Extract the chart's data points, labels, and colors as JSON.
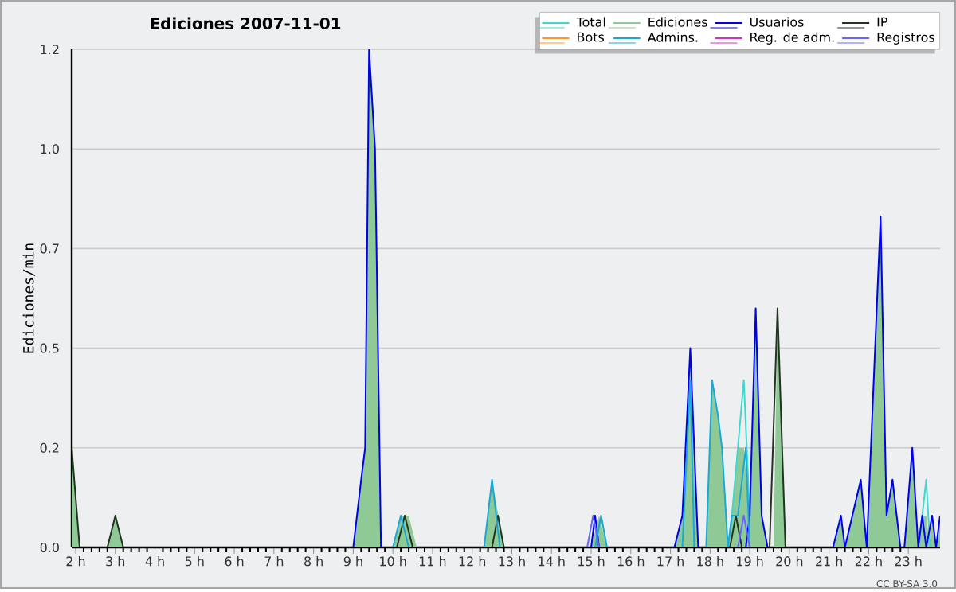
{
  "chart_data": {
    "type": "line",
    "title": "Ediciones  2007-11-01",
    "ylabel": "Ediciones/min",
    "xlim": [
      1.9,
      23.8
    ],
    "ylim": [
      0,
      1.25
    ],
    "xticks": [
      {
        "value": 2,
        "label": "2 h"
      },
      {
        "value": 3,
        "label": "3 h"
      },
      {
        "value": 4,
        "label": "4 h"
      },
      {
        "value": 5,
        "label": "5 h"
      },
      {
        "value": 6,
        "label": "6 h"
      },
      {
        "value": 7,
        "label": "7 h"
      },
      {
        "value": 8,
        "label": "8 h"
      },
      {
        "value": 9,
        "label": "9 h"
      },
      {
        "value": 10,
        "label": "10 h"
      },
      {
        "value": 11,
        "label": "11 h"
      },
      {
        "value": 12,
        "label": "12 h"
      },
      {
        "value": 13,
        "label": "13 h"
      },
      {
        "value": 14,
        "label": "14 h"
      },
      {
        "value": 15,
        "label": "15 h"
      },
      {
        "value": 16,
        "label": "16 h"
      },
      {
        "value": 17,
        "label": "17 h"
      },
      {
        "value": 18,
        "label": "18 h"
      },
      {
        "value": 19,
        "label": "19 h"
      },
      {
        "value": 20,
        "label": "20 h"
      },
      {
        "value": 21,
        "label": "21 h"
      },
      {
        "value": 22,
        "label": "22 h"
      },
      {
        "value": 23,
        "label": "23 h"
      }
    ],
    "yticks": [
      {
        "value": 0,
        "label": "0.0"
      },
      {
        "value": 0.25,
        "label": "0.2"
      },
      {
        "value": 0.5,
        "label": "0.5"
      },
      {
        "value": 0.75,
        "label": "0.7"
      },
      {
        "value": 1.0,
        "label": "1.0"
      },
      {
        "value": 1.25,
        "label": "1.2"
      }
    ],
    "grid": "y",
    "legend": "top right",
    "marker": "none",
    "line_style": "solid",
    "annotations": [
      "CC BY-SA 3.0"
    ],
    "series": [
      {
        "name": "Total",
        "color": "#40d8cc",
        "x": [
          18.45,
          18.55,
          18.7,
          18.85,
          19.0,
          19.1,
          23.25,
          23.35,
          23.45,
          23.55
        ],
        "values": [
          0,
          0.08,
          0.25,
          0.42,
          0.08,
          null,
          0,
          0.08,
          0.17,
          0
        ]
      },
      {
        "name": "Ediciones",
        "type": "area",
        "color": "#8fca96",
        "x": [
          1.9,
          2.1,
          2.8,
          3.0,
          3.2,
          9.0,
          9.2,
          9.3,
          9.4,
          9.55,
          9.7,
          10.0,
          10.2,
          10.4,
          10.6,
          12.3,
          12.5,
          12.8,
          15.0,
          15.2,
          15.4,
          17.1,
          17.3,
          17.5,
          17.7,
          17.9,
          18.05,
          18.2,
          18.3,
          18.45,
          18.55,
          18.7,
          18.85,
          19.0,
          19.15,
          19.3,
          19.45,
          19.6,
          19.7,
          19.9,
          21.1,
          21.3,
          21.4,
          21.8,
          21.95,
          22.3,
          22.45,
          22.6,
          22.8,
          22.9,
          23.1,
          23.25,
          23.35,
          23.45,
          23.55,
          23.6,
          23.7,
          23.8
        ],
        "values": [
          0.25,
          0,
          0,
          0.08,
          0,
          0,
          0.17,
          0.25,
          1.25,
          1.0,
          0,
          0,
          0.08,
          0.08,
          0,
          0,
          0.17,
          0,
          0,
          0.08,
          0,
          0,
          0.08,
          0.5,
          0,
          0,
          0.42,
          0.33,
          0.25,
          0,
          0.08,
          0.25,
          0.25,
          0.08,
          0.6,
          0.08,
          0,
          0,
          0.6,
          0,
          0,
          0.08,
          0,
          0.17,
          0,
          0.83,
          0.08,
          0.17,
          0,
          0,
          0.25,
          0,
          0.08,
          0.08,
          0,
          0.08,
          0,
          0.08
        ]
      },
      {
        "name": "Usuarios",
        "color": "#0000ee",
        "x": [
          9.0,
          9.2,
          9.3,
          9.4,
          9.55,
          9.7,
          15.0,
          15.1,
          15.2,
          17.1,
          17.3,
          17.5,
          17.7,
          18.9,
          19.0,
          19.15,
          19.3,
          19.45,
          21.1,
          21.3,
          21.4,
          21.8,
          21.95,
          22.3,
          22.45,
          22.6,
          22.8,
          22.9,
          23.1,
          23.25,
          23.35,
          23.45,
          23.6,
          23.7,
          23.8
        ],
        "values": [
          0,
          0.17,
          0.25,
          1.25,
          1.0,
          0,
          0,
          0.08,
          0,
          0,
          0.08,
          0.5,
          0,
          0,
          0.08,
          0.6,
          0.08,
          0,
          0,
          0.08,
          0,
          0.17,
          0,
          0.83,
          0.08,
          0.17,
          0,
          0,
          0.25,
          0,
          0.08,
          0,
          0.08,
          0,
          0.08
        ]
      },
      {
        "name": "IP",
        "color": "#223322",
        "x": [
          1.9,
          2.1,
          2.8,
          3.0,
          3.2,
          10.1,
          10.3,
          10.5,
          12.5,
          12.65,
          12.8,
          18.5,
          18.65,
          18.8,
          19.5,
          19.7,
          19.9
        ],
        "values": [
          0.25,
          0,
          0,
          0.08,
          0,
          0,
          0.08,
          0,
          0,
          0.08,
          0,
          0,
          0.08,
          0,
          0,
          0.6,
          0
        ]
      },
      {
        "name": "Bots",
        "color": "#ff9922"
      },
      {
        "name": "Admins.",
        "color": "#18a8d8",
        "x": [
          10.0,
          10.2,
          10.4,
          12.3,
          12.5,
          12.7,
          15.1,
          15.25,
          15.4,
          17.3,
          17.5,
          17.6,
          17.9,
          18.05,
          18.2,
          18.3,
          18.45,
          18.55,
          18.7,
          18.9,
          19.0
        ],
        "values": [
          0,
          0.08,
          0,
          0,
          0.17,
          0,
          0,
          0.08,
          0,
          0,
          0.42,
          0,
          0,
          0.42,
          0.33,
          0.25,
          0,
          0.08,
          0.08,
          0.25,
          0
        ]
      },
      {
        "name": "Reg. de adm.",
        "color": "#cc33cc"
      },
      {
        "name": "Registros",
        "color": "#6666ff",
        "x": [
          14.9,
          15.05,
          15.2,
          18.7,
          18.85,
          19.0
        ],
        "values": [
          0,
          0.08,
          0,
          0,
          0.08,
          0
        ]
      }
    ]
  }
}
